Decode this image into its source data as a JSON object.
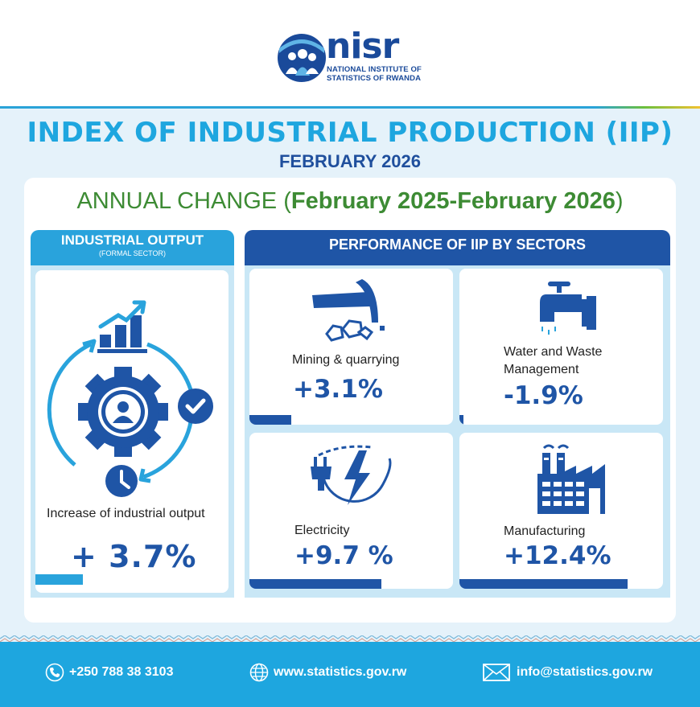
{
  "brand": {
    "logo_word": "nisr",
    "logo_line1": "NATIONAL INSTITUTE OF",
    "logo_line2": "STATISTICS OF RWANDA"
  },
  "title": "INDEX OF INDUSTRIAL PRODUCTION (IIP)",
  "period": "FEBRUARY 2026",
  "annual_change": {
    "prefix": "ANNUAL CHANGE (",
    "range": "February 2025-February 2026",
    "suffix": ")"
  },
  "industrial_output": {
    "header": "INDUSTRIAL OUTPUT",
    "subheader": "(FORMAL SECTOR)",
    "label": "Increase of industrial output",
    "value": "+ 3.7%",
    "change_pct": 3.7
  },
  "sectors_header": "PERFORMANCE OF IIP BY SECTORS",
  "sectors": [
    {
      "label": "Mining & quarrying",
      "value": "+3.1%",
      "change_pct": 3.1,
      "icon": "pickaxe-icon"
    },
    {
      "label": "Water and Waste Management",
      "value": "-1.9%",
      "change_pct": -1.9,
      "icon": "water-tap-icon"
    },
    {
      "label": "Electricity",
      "value": "+9.7 %",
      "change_pct": 9.7,
      "icon": "electricity-plug-icon"
    },
    {
      "label": "Manufacturing",
      "value": "+12.4%",
      "change_pct": 12.4,
      "icon": "factory-icon"
    }
  ],
  "footer": {
    "phone": "+250 788 38 3103",
    "website": "www.statistics.gov.rw",
    "email": "info@statistics.gov.rw"
  },
  "colors": {
    "primary_blue": "#1f55a6",
    "light_blue": "#1ea6df",
    "green": "#3d8b34"
  }
}
